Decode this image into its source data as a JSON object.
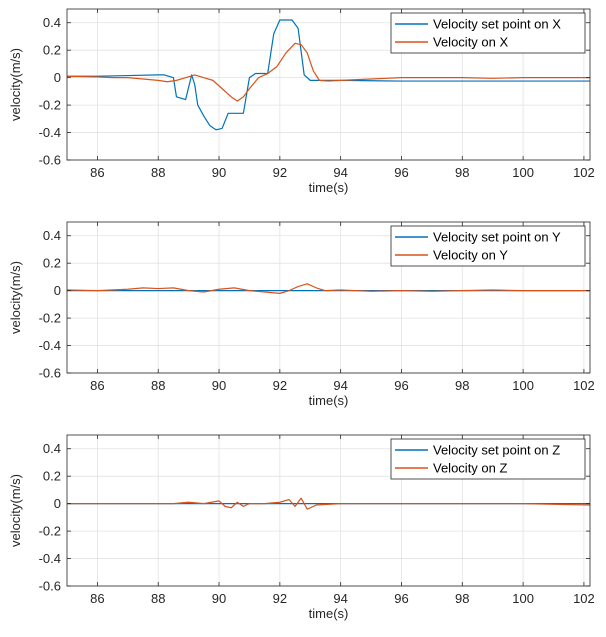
{
  "chart_data": [
    {
      "type": "line",
      "title": "",
      "xlabel": "time(s)",
      "ylabel": "velocity(m/s)",
      "xlim": [
        85,
        102.2
      ],
      "ylim": [
        -0.6,
        0.5
      ],
      "xticks": [
        "86",
        "88",
        "90",
        "92",
        "94",
        "96",
        "98",
        "100",
        "102"
      ],
      "yticks": [
        "-0.6",
        "-0.4",
        "-0.2",
        "0",
        "0.2",
        "0.4"
      ],
      "grid": true,
      "legend_position": "top-right",
      "series": [
        {
          "name": "Velocity set point on X",
          "color": "#0072BD",
          "x": [
            85,
            86,
            87,
            88,
            88.2,
            88.5,
            88.6,
            88.9,
            89.1,
            89.2,
            89.3,
            89.5,
            89.7,
            89.9,
            90.1,
            90.3,
            90.5,
            90.8,
            91.0,
            91.2,
            91.4,
            91.6,
            91.8,
            92.0,
            92.4,
            92.6,
            92.8,
            93.0,
            94,
            96,
            98,
            100,
            102.2
          ],
          "y": [
            0.01,
            0.01,
            0.015,
            0.02,
            0.02,
            0.0,
            -0.14,
            -0.16,
            0.02,
            -0.05,
            -0.2,
            -0.28,
            -0.35,
            -0.38,
            -0.37,
            -0.26,
            -0.26,
            -0.26,
            0.0,
            0.03,
            0.03,
            0.03,
            0.32,
            0.42,
            0.42,
            0.36,
            0.02,
            -0.02,
            -0.02,
            -0.025,
            -0.025,
            -0.025,
            -0.025
          ]
        },
        {
          "name": "Velocity on X",
          "color": "#D95319",
          "x": [
            85,
            86,
            86.5,
            87,
            87.5,
            88,
            88.3,
            88.6,
            88.9,
            89.2,
            89.5,
            89.8,
            90.1,
            90.4,
            90.6,
            90.8,
            91.0,
            91.3,
            91.6,
            91.9,
            92.2,
            92.5,
            92.7,
            92.9,
            93.1,
            93.3,
            93.6,
            94,
            95,
            96,
            97,
            98,
            99,
            100,
            101,
            102.2
          ],
          "y": [
            0.01,
            0.005,
            0.0,
            0.0,
            -0.01,
            -0.02,
            -0.03,
            -0.02,
            0.0,
            0.02,
            0.0,
            -0.02,
            -0.08,
            -0.14,
            -0.17,
            -0.14,
            -0.08,
            0.0,
            0.03,
            0.08,
            0.18,
            0.25,
            0.24,
            0.18,
            0.05,
            -0.02,
            -0.025,
            -0.02,
            -0.01,
            0.0,
            0.0,
            0.0,
            -0.005,
            0.0,
            0.0,
            0.0
          ]
        }
      ]
    },
    {
      "type": "line",
      "title": "",
      "xlabel": "time(s)",
      "ylabel": "velocity(m/s)",
      "xlim": [
        85,
        102.2
      ],
      "ylim": [
        -0.6,
        0.5
      ],
      "xticks": [
        "86",
        "88",
        "90",
        "92",
        "94",
        "96",
        "98",
        "100",
        "102"
      ],
      "yticks": [
        "-0.6",
        "-0.4",
        "-0.2",
        "0",
        "0.2",
        "0.4"
      ],
      "grid": true,
      "legend_position": "top-right",
      "series": [
        {
          "name": "Velocity set point on Y",
          "color": "#0072BD",
          "x": [
            85,
            88,
            90,
            92,
            94,
            96,
            98,
            100,
            102.2
          ],
          "y": [
            0.0,
            0.0,
            0.0,
            0.0,
            0.0,
            0.0,
            0.0,
            0.0,
            0.0
          ]
        },
        {
          "name": "Velocity on Y",
          "color": "#D95319",
          "x": [
            85,
            86,
            87,
            87.5,
            88,
            88.5,
            89,
            89.5,
            90,
            90.5,
            91,
            91.5,
            92,
            92.3,
            92.6,
            92.9,
            93.2,
            93.5,
            94,
            95,
            96,
            97,
            98,
            99,
            100,
            101,
            102.2
          ],
          "y": [
            0.005,
            0.0,
            0.01,
            0.02,
            0.015,
            0.02,
            0.0,
            -0.01,
            0.01,
            0.02,
            0.0,
            -0.01,
            -0.02,
            0.0,
            0.03,
            0.05,
            0.02,
            0.0,
            0.005,
            -0.005,
            0.0,
            -0.005,
            0.0,
            0.005,
            0.0,
            0.0,
            0.0
          ]
        }
      ]
    },
    {
      "type": "line",
      "title": "",
      "xlabel": "time(s)",
      "ylabel": "velocity(m/s)",
      "xlim": [
        85,
        102.2
      ],
      "ylim": [
        -0.6,
        0.5
      ],
      "xticks": [
        "86",
        "88",
        "90",
        "92",
        "94",
        "96",
        "98",
        "100",
        "102"
      ],
      "yticks": [
        "-0.6",
        "-0.4",
        "-0.2",
        "0",
        "0.2",
        "0.4"
      ],
      "grid": true,
      "legend_position": "top-right",
      "series": [
        {
          "name": "Velocity set point on Z",
          "color": "#0072BD",
          "x": [
            85,
            88,
            90,
            92,
            94,
            96,
            98,
            100,
            102.2
          ],
          "y": [
            0.0,
            0.0,
            0.0,
            0.0,
            0.0,
            0.0,
            0.0,
            0.0,
            0.0
          ]
        },
        {
          "name": "Velocity on Z",
          "color": "#D95319",
          "x": [
            85,
            87,
            88.5,
            89,
            89.5,
            90,
            90.2,
            90.4,
            90.6,
            90.8,
            91,
            91.5,
            92,
            92.3,
            92.5,
            92.7,
            92.9,
            93.2,
            94,
            96,
            98,
            100,
            101,
            102.2
          ],
          "y": [
            0.0,
            0.0,
            0.0,
            0.01,
            0.0,
            0.02,
            -0.02,
            -0.03,
            0.01,
            -0.02,
            0.0,
            0.0,
            0.01,
            0.03,
            -0.02,
            0.04,
            -0.04,
            -0.01,
            0.0,
            0.0,
            0.0,
            0.0,
            -0.005,
            -0.01
          ]
        }
      ]
    }
  ]
}
